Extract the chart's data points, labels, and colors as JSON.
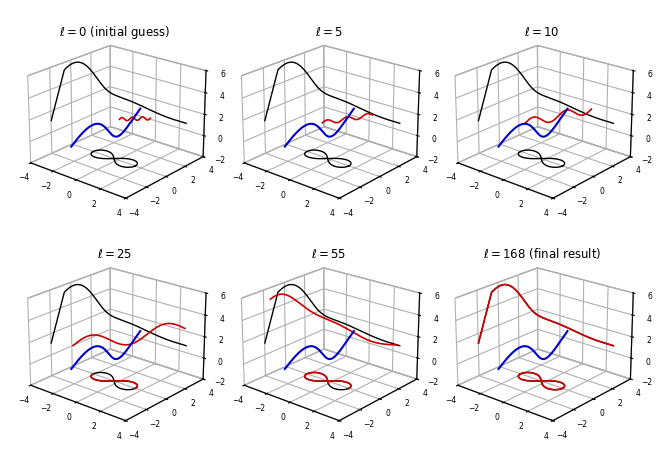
{
  "titles": [
    "$\\ell =0$ (initial guess)",
    "$\\ell =5$",
    "$\\ell =10$",
    "$\\ell =25$",
    "$\\ell =55$",
    "$\\ell =168$ (final result)"
  ],
  "xlim": [
    -4,
    4
  ],
  "ylim": [
    -4,
    4
  ],
  "zlim": [
    -2,
    6
  ],
  "xticks": [
    -4,
    -2,
    0,
    2,
    4
  ],
  "yticks": [
    -4,
    -2,
    0,
    2,
    4
  ],
  "zticks": [
    -2,
    0,
    2,
    4,
    6
  ],
  "elev": 22,
  "azim": -50,
  "background_color": "#ffffff",
  "title_fontsize": 8.5
}
